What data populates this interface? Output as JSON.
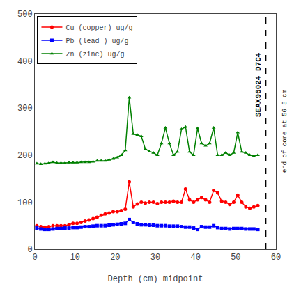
{
  "chart_data": {
    "type": "line",
    "title": "SEAX96024 D7C4",
    "xlabel": "Depth (cm) midpoint",
    "xlim": [
      0,
      60
    ],
    "ylim": [
      0,
      500
    ],
    "xticks": [
      0,
      10,
      20,
      30,
      40,
      50,
      60
    ],
    "yticks": [
      0,
      100,
      200,
      300,
      400,
      500
    ],
    "grid": false,
    "legend": "upper left",
    "x": [
      0.5,
      1.5,
      2.5,
      3.5,
      4.5,
      5.5,
      6.5,
      7.5,
      8.5,
      9.5,
      10.5,
      11.5,
      12.5,
      13.5,
      14.5,
      15.5,
      16.5,
      17.5,
      18.5,
      19.5,
      20.5,
      21.5,
      22.5,
      23.5,
      24.5,
      25.5,
      26.5,
      27.5,
      28.5,
      29.5,
      30.5,
      31.5,
      32.5,
      33.5,
      34.5,
      35.5,
      36.5,
      37.5,
      38.5,
      39.5,
      40.5,
      41.5,
      42.5,
      43.5,
      44.5,
      45.5,
      46.5,
      47.5,
      48.5,
      49.5,
      50.5,
      51.5,
      52.5,
      53.5,
      54.5,
      55.5
    ],
    "series": [
      {
        "name": "Cu (copper) ug/g",
        "color": "#ff0000",
        "marker": "circle",
        "values": [
          50,
          48,
          47,
          48,
          50,
          50,
          50,
          50,
          52,
          55,
          55,
          57,
          60,
          62,
          65,
          68,
          72,
          75,
          77,
          80,
          80,
          82,
          85,
          143,
          90,
          96,
          100,
          98,
          100,
          100,
          97,
          100,
          100,
          100,
          102,
          100,
          100,
          128,
          105,
          100,
          105,
          110,
          105,
          100,
          125,
          120,
          102,
          100,
          95,
          100,
          115,
          100,
          90,
          87,
          90,
          93
        ]
      },
      {
        "name": "Pb (lead ) ug/g",
        "color": "#0000ff",
        "marker": "square",
        "values": [
          45,
          43,
          42,
          42,
          43,
          44,
          44,
          45,
          45,
          46,
          46,
          47,
          48,
          48,
          49,
          50,
          50,
          50,
          51,
          52,
          53,
          54,
          55,
          63,
          57,
          54,
          52,
          52,
          51,
          51,
          50,
          50,
          50,
          49,
          49,
          49,
          48,
          47,
          47,
          45,
          42,
          48,
          47,
          47,
          50,
          46,
          44,
          44,
          43,
          44,
          44,
          44,
          43,
          43,
          43,
          42
        ]
      },
      {
        "name": "Zn (zinc) ug/g",
        "color": "#008000",
        "marker": "triangle-up",
        "values": [
          182,
          181,
          182,
          183,
          185,
          183,
          183,
          183,
          184,
          184,
          184,
          185,
          185,
          185,
          186,
          188,
          188,
          188,
          190,
          192,
          195,
          200,
          210,
          322,
          245,
          243,
          240,
          213,
          208,
          205,
          200,
          225,
          258,
          225,
          200,
          207,
          255,
          260,
          207,
          200,
          257,
          225,
          220,
          225,
          258,
          200,
          200,
          205,
          200,
          205,
          248,
          207,
          205,
          200,
          198,
          200
        ]
      }
    ],
    "vline": {
      "x": 57.5,
      "color": "#000000",
      "line_style": "dashed",
      "label": "end of core at 56.5 cm"
    }
  }
}
